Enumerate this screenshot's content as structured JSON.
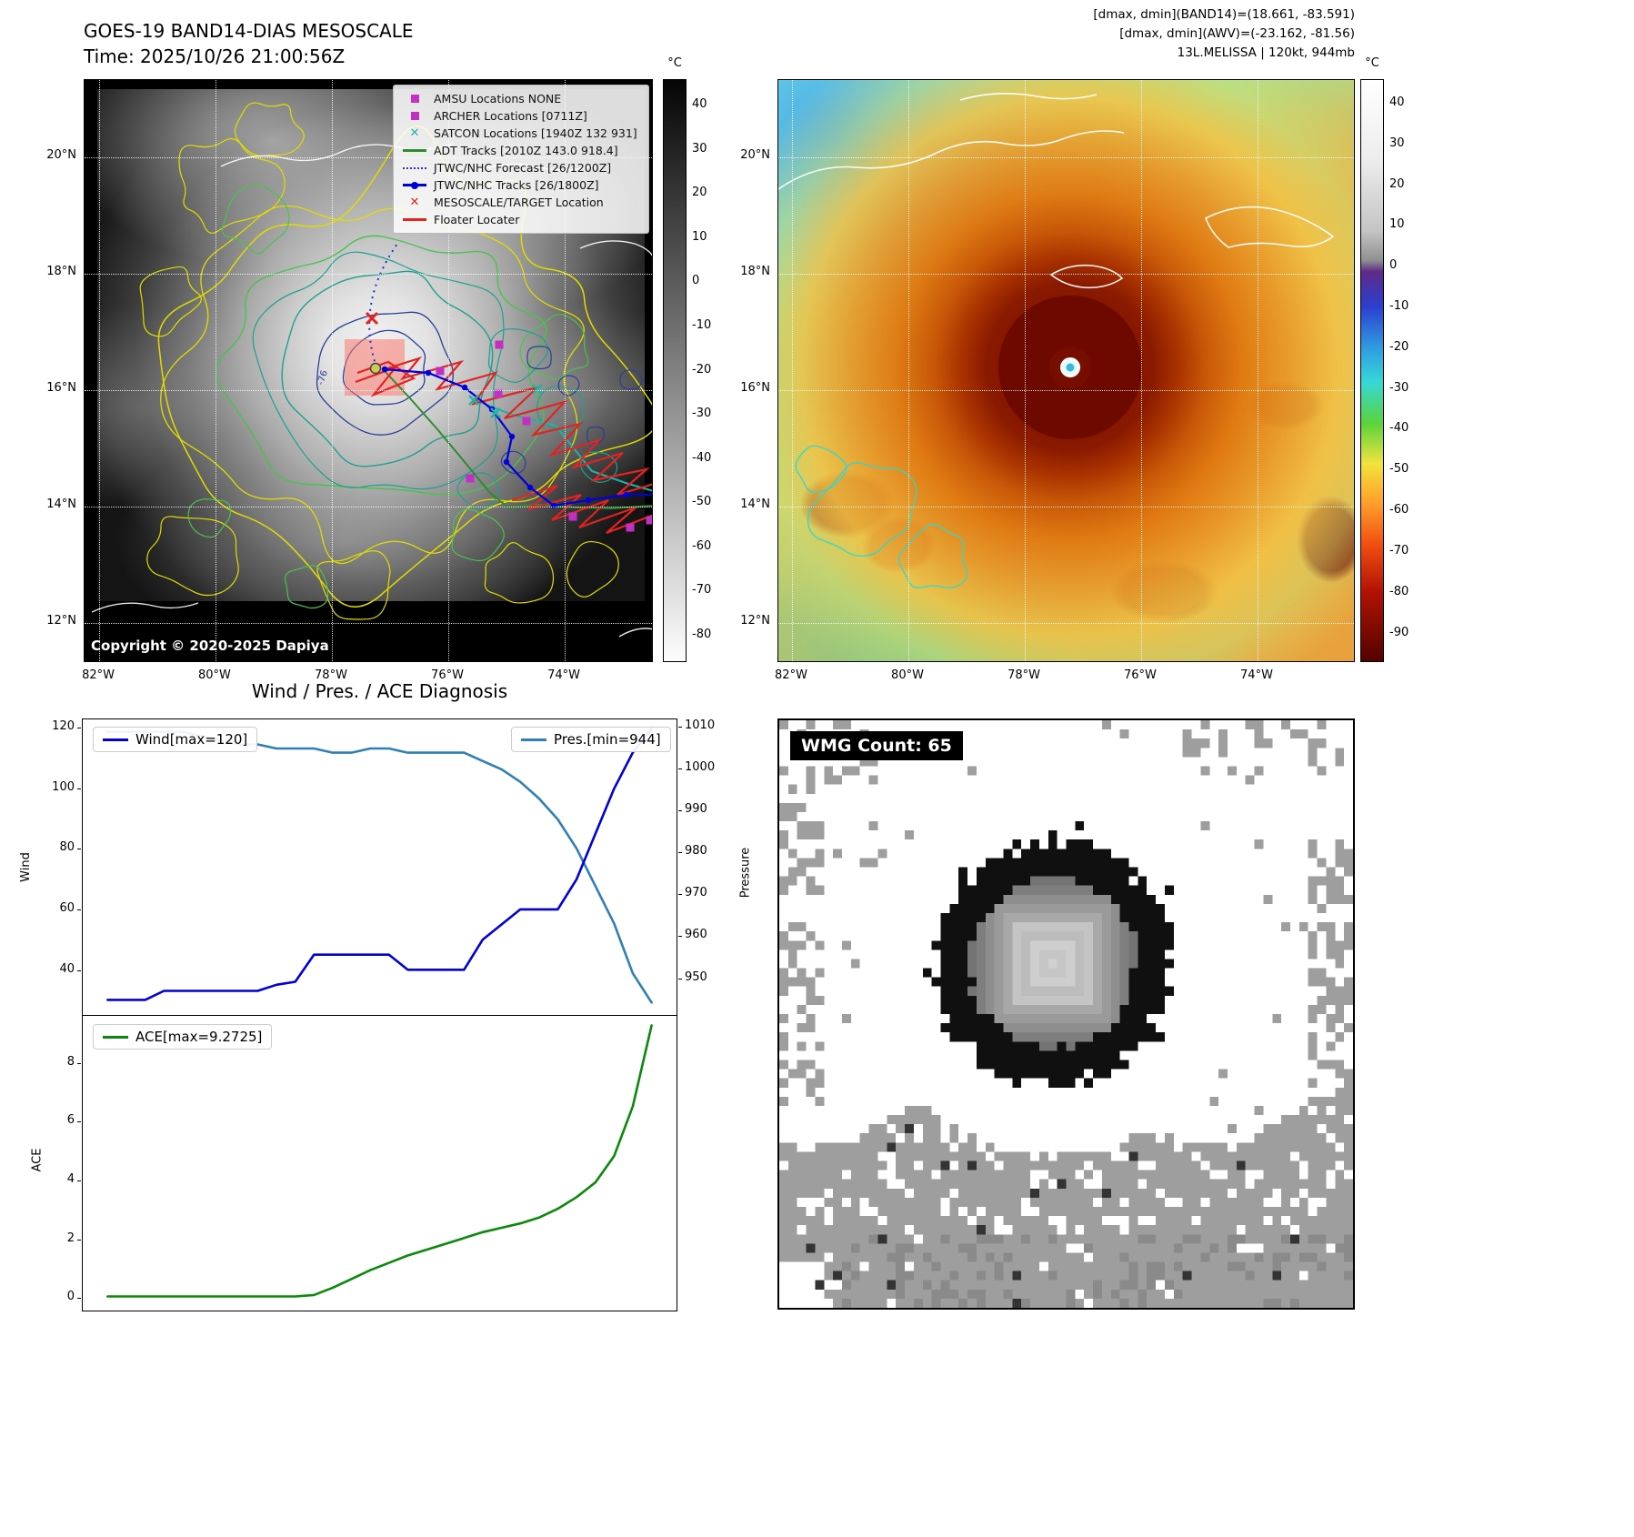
{
  "top_left": {
    "title": "GOES-19 BAND14-DIAS MESOSCALE",
    "subtitle": "Time: 2025/10/26 21:00:56Z",
    "copyright": "Copyright © 2020-2025 Dapiya",
    "contour_label": "-76",
    "legend_items": [
      {
        "type": "square",
        "color": "#c32fc3",
        "label": "AMSU Locations NONE"
      },
      {
        "type": "square",
        "color": "#c32fc3",
        "label": "ARCHER Locations [0711Z]"
      },
      {
        "type": "x",
        "color": "#1fb3a6",
        "label": "SATCON Locations [1940Z 132 931]"
      },
      {
        "type": "line",
        "color": "#2e8b2e",
        "label": "ADT Tracks [2010Z 143.0 918.4]"
      },
      {
        "type": "dotted",
        "color": "#3333cc",
        "label": "JTWC/NHC Forecast [26/1200Z]"
      },
      {
        "type": "line-dot",
        "color": "#0000dd",
        "label": "JTWC/NHC Tracks [26/1800Z]"
      },
      {
        "type": "x",
        "color": "#e32222",
        "label": "MESOSCALE/TARGET Location"
      },
      {
        "type": "line",
        "color": "#e32222",
        "label": "Floater Locater"
      }
    ],
    "lat_ticks": [
      "20°N",
      "18°N",
      "16°N",
      "14°N",
      "12°N"
    ],
    "lon_ticks": [
      "82°W",
      "80°W",
      "78°W",
      "76°W",
      "74°W"
    ],
    "colorbar": {
      "unit": "°C",
      "ticks": [
        "40",
        "30",
        "20",
        "10",
        "0",
        "-10",
        "-20",
        "-30",
        "-40",
        "-50",
        "-60",
        "-70",
        "-80"
      ]
    }
  },
  "top_right": {
    "header_lines": [
      "[dmax, dmin](BAND14)=(18.661, -83.591)",
      "[dmax, dmin](AWV)=(-23.162, -81.56)",
      "13L.MELISSA | 120kt, 944mb"
    ],
    "lat_ticks": [
      "20°N",
      "18°N",
      "16°N",
      "14°N",
      "12°N"
    ],
    "lon_ticks": [
      "82°W",
      "80°W",
      "78°W",
      "76°W",
      "74°W"
    ],
    "colorbar": {
      "unit": "°C",
      "ticks": [
        "40",
        "30",
        "20",
        "10",
        "0",
        "-10",
        "-20",
        "-30",
        "-40",
        "-50",
        "-60",
        "-70",
        "-80",
        "-90"
      ]
    }
  },
  "bottom_left": {
    "title": "Wind / Pres. / ACE Diagnosis"
  },
  "bottom_right": {
    "wmg_label": "WMG Count: 65"
  },
  "chart_data": [
    {
      "type": "line",
      "title": "Wind / Pres. / ACE Diagnosis",
      "x_points": 30,
      "series": [
        {
          "name": "Wind[max=120]",
          "color": "#0000dd",
          "axis": "left",
          "values": [
            30,
            30,
            30,
            33,
            33,
            33,
            33,
            33,
            33,
            35,
            36,
            45,
            45,
            45,
            45,
            45,
            40,
            40,
            40,
            40,
            50,
            55,
            60,
            60,
            60,
            70,
            85,
            100,
            112,
            120
          ]
        },
        {
          "name": "Pres.[min=944]",
          "color": "#2e7fb8",
          "axis": "right",
          "values": [
            1009,
            1009,
            1009,
            1009,
            1009,
            1008,
            1007,
            1006,
            1006,
            1005,
            1005,
            1005,
            1004,
            1004,
            1005,
            1005,
            1004,
            1004,
            1004,
            1004,
            1002,
            1000,
            997,
            993,
            988,
            981,
            972,
            963,
            951,
            944
          ]
        }
      ],
      "left_ylabel": "Wind",
      "left_ylim": [
        25,
        123
      ],
      "left_ticks": [
        120,
        100,
        80,
        60,
        40
      ],
      "right_ylabel": "Pressure",
      "right_ylim": [
        941,
        1012
      ],
      "right_ticks": [
        1010,
        1000,
        990,
        980,
        970,
        960,
        950
      ]
    },
    {
      "type": "line",
      "series": [
        {
          "name": "ACE[max=9.2725]",
          "color": "#0a8a0a",
          "values": [
            0,
            0,
            0,
            0,
            0,
            0,
            0,
            0,
            0,
            0,
            0,
            0.05,
            0.3,
            0.6,
            0.9,
            1.15,
            1.4,
            1.6,
            1.8,
            2.0,
            2.2,
            2.35,
            2.5,
            2.7,
            3.0,
            3.4,
            3.9,
            4.8,
            6.5,
            9.2725
          ]
        }
      ],
      "ylabel": "ACE",
      "ylim": [
        -0.45,
        9.6
      ],
      "yticks": [
        8,
        6,
        4,
        2,
        0
      ]
    }
  ]
}
